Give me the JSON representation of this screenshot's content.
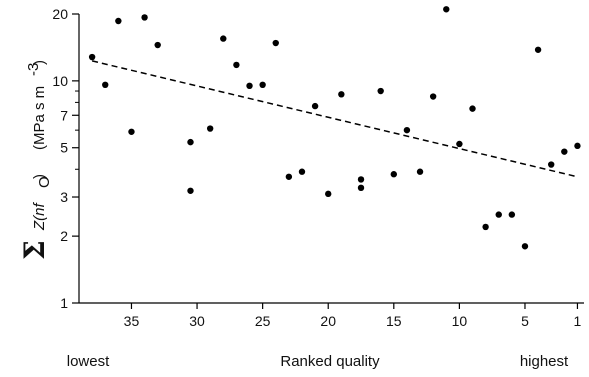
{
  "chart_data": {
    "type": "scatter",
    "title": "",
    "xlabel": "Ranked quality",
    "x_end_labels": {
      "left": "lowest",
      "right": "highest"
    },
    "ylabel": {
      "symbol": "Σ",
      "function": "Z(nf",
      "subscript": "O",
      "function_close": ")",
      "units": "(MPa s m",
      "units_exp": "-3",
      "units_close": ")"
    },
    "x_reversed": true,
    "xlim": [
      39,
      0.5
    ],
    "ylim": [
      1,
      20
    ],
    "y_scale": "log",
    "x_ticks": [
      35,
      30,
      25,
      20,
      15,
      10,
      5,
      1
    ],
    "x_tick_labels": [
      "35",
      "30",
      "25",
      "20",
      "15",
      "10",
      "5",
      "1"
    ],
    "y_major_ticks": [
      1,
      2,
      3,
      5,
      7,
      10,
      20
    ],
    "y_tick_labels": [
      "1",
      "2",
      "3",
      "5",
      "7",
      "10",
      "20"
    ],
    "y_minor_ticks": [
      4,
      6,
      8,
      9
    ],
    "grid": false,
    "legend": "none",
    "points": [
      {
        "x": 38,
        "y": 12.8
      },
      {
        "x": 37,
        "y": 9.6
      },
      {
        "x": 36,
        "y": 18.6
      },
      {
        "x": 35,
        "y": 5.9
      },
      {
        "x": 34,
        "y": 19.3
      },
      {
        "x": 33,
        "y": 14.5
      },
      {
        "x": 30.5,
        "y": 5.3
      },
      {
        "x": 30.5,
        "y": 3.2
      },
      {
        "x": 29,
        "y": 6.1
      },
      {
        "x": 28,
        "y": 15.5
      },
      {
        "x": 27,
        "y": 11.8
      },
      {
        "x": 26,
        "y": 9.5
      },
      {
        "x": 25,
        "y": 9.6
      },
      {
        "x": 24,
        "y": 14.8
      },
      {
        "x": 23,
        "y": 3.7
      },
      {
        "x": 22,
        "y": 3.9
      },
      {
        "x": 21,
        "y": 7.7
      },
      {
        "x": 20,
        "y": 3.1
      },
      {
        "x": 19,
        "y": 8.7
      },
      {
        "x": 17.5,
        "y": 3.6
      },
      {
        "x": 17.5,
        "y": 3.3
      },
      {
        "x": 16,
        "y": 9.0
      },
      {
        "x": 15,
        "y": 3.8
      },
      {
        "x": 14,
        "y": 6.0
      },
      {
        "x": 13,
        "y": 3.9
      },
      {
        "x": 12,
        "y": 8.5
      },
      {
        "x": 11,
        "y": 21.0
      },
      {
        "x": 10,
        "y": 5.2
      },
      {
        "x": 9,
        "y": 7.5
      },
      {
        "x": 8,
        "y": 2.2
      },
      {
        "x": 7,
        "y": 2.5
      },
      {
        "x": 6,
        "y": 2.5
      },
      {
        "x": 5,
        "y": 1.8
      },
      {
        "x": 4,
        "y": 13.8
      },
      {
        "x": 3,
        "y": 4.2
      },
      {
        "x": 2,
        "y": 4.8
      },
      {
        "x": 1,
        "y": 5.1
      }
    ],
    "trendline": {
      "style": "dashed",
      "x": [
        38,
        1
      ],
      "y": [
        12.3,
        3.7
      ]
    }
  }
}
